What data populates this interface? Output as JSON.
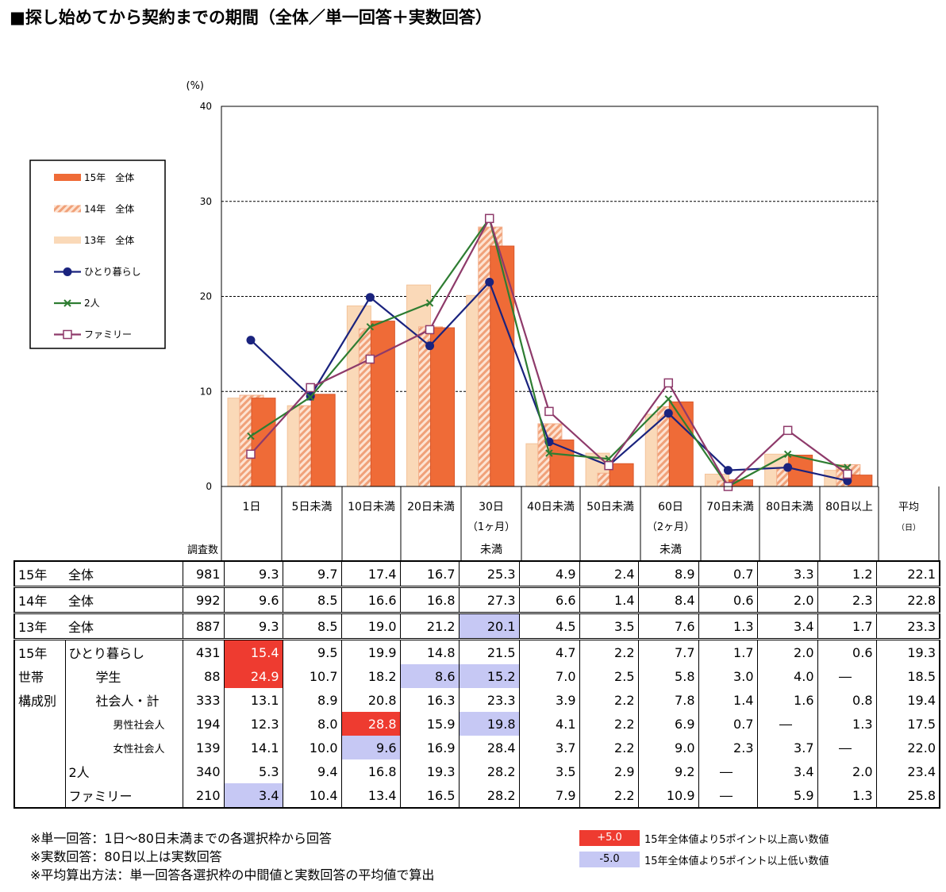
{
  "title": "■探し始めてから契約までの期間（全体／単一回答＋実数回答）",
  "chart_data": {
    "type": "bar",
    "y_unit": "(%)",
    "ylim": [
      0,
      40
    ],
    "yticks": [
      "0",
      "10",
      "20",
      "30",
      "40"
    ],
    "categories": [
      "1日",
      "5日未満",
      "10日未満",
      "20日未満",
      "30日(1ヶ月)未満",
      "40日未満",
      "50日未満",
      "60日(2ヶ月)未満",
      "70日未満",
      "80日未満",
      "80日以上"
    ],
    "bar_series": [
      {
        "name": "13年　全体",
        "values": [
          9.3,
          8.5,
          19.0,
          21.2,
          20.1,
          4.5,
          3.5,
          7.6,
          1.3,
          3.4,
          1.7
        ],
        "color": "#fad9b8"
      },
      {
        "name": "14年　全体",
        "values": [
          9.6,
          8.5,
          16.6,
          16.8,
          27.3,
          6.6,
          1.4,
          8.4,
          0.6,
          2.0,
          2.3
        ],
        "color": "#f0a179"
      },
      {
        "name": "15年　全体",
        "values": [
          9.3,
          9.7,
          17.4,
          16.7,
          25.3,
          4.9,
          2.4,
          8.9,
          0.7,
          3.3,
          1.2
        ],
        "color": "#ef6b37"
      }
    ],
    "line_series": [
      {
        "name": "ひとり暮らし",
        "values": [
          15.4,
          9.5,
          19.9,
          14.8,
          21.5,
          4.7,
          2.2,
          7.7,
          1.7,
          2.0,
          0.6
        ],
        "color": "#1a237e",
        "marker": "dot"
      },
      {
        "name": "2人",
        "values": [
          5.3,
          9.4,
          16.8,
          19.3,
          28.2,
          3.5,
          2.9,
          9.2,
          0.0,
          3.4,
          2.0
        ],
        "color": "#2e7d32",
        "marker": "x"
      },
      {
        "name": "ファミリー",
        "values": [
          3.4,
          10.4,
          13.4,
          16.5,
          28.2,
          7.9,
          2.2,
          10.9,
          0.0,
          5.9,
          1.3
        ],
        "color": "#8e3a6a",
        "marker": "square"
      }
    ],
    "legend_order": [
      "15年　全体",
      "14年　全体",
      "13年　全体",
      "ひとり暮らし",
      "2人",
      "ファミリー"
    ]
  },
  "table": {
    "header_label": "調査数",
    "columns": [
      {
        "l1": "1日",
        "l2": "",
        "l3": ""
      },
      {
        "l1": "5日未満",
        "l2": "",
        "l3": ""
      },
      {
        "l1": "10日未満",
        "l2": "",
        "l3": ""
      },
      {
        "l1": "20日未満",
        "l2": "",
        "l3": ""
      },
      {
        "l1": "30日",
        "l2": "（1ヶ月）",
        "l3": "未満"
      },
      {
        "l1": "40日未満",
        "l2": "",
        "l3": ""
      },
      {
        "l1": "50日未満",
        "l2": "",
        "l3": ""
      },
      {
        "l1": "60日",
        "l2": "（2ヶ月）",
        "l3": "未満"
      },
      {
        "l1": "70日未満",
        "l2": "",
        "l3": ""
      },
      {
        "l1": "80日未満",
        "l2": "",
        "l3": ""
      },
      {
        "l1": "80日以上",
        "l2": "",
        "l3": ""
      },
      {
        "l1": "平均",
        "l2": "（日）",
        "l3": ""
      }
    ],
    "rows": [
      {
        "g1": "15年",
        "g2": "全体",
        "g3": "",
        "indent": 0,
        "n": "981",
        "values": [
          "9.3",
          "9.7",
          "17.4",
          "16.7",
          "25.3",
          "4.9",
          "2.4",
          "8.9",
          "0.7",
          "3.3",
          "1.2",
          "22.1"
        ],
        "hl": [
          null,
          null,
          null,
          null,
          null,
          null,
          null,
          null,
          null,
          null,
          null,
          null
        ],
        "sep": "top"
      },
      {
        "g1": "14年",
        "g2": "全体",
        "g3": "",
        "indent": 0,
        "n": "992",
        "values": [
          "9.6",
          "8.5",
          "16.6",
          "16.8",
          "27.3",
          "6.6",
          "1.4",
          "8.4",
          "0.6",
          "2.0",
          "2.3",
          "22.8"
        ],
        "hl": [
          null,
          null,
          null,
          null,
          null,
          null,
          null,
          null,
          null,
          null,
          null,
          null
        ],
        "sep": "double"
      },
      {
        "g1": "13年",
        "g2": "全体",
        "g3": "",
        "indent": 0,
        "n": "887",
        "values": [
          "9.3",
          "8.5",
          "19.0",
          "21.2",
          "20.1",
          "4.5",
          "3.5",
          "7.6",
          "1.3",
          "3.4",
          "1.7",
          "23.3"
        ],
        "hl": [
          null,
          null,
          null,
          null,
          "lo",
          null,
          null,
          null,
          null,
          null,
          null,
          null
        ],
        "sep": "double"
      },
      {
        "g1": "15年",
        "g2": "ひとり暮らし",
        "g3": "",
        "indent": 0,
        "n": "431",
        "values": [
          "15.4",
          "9.5",
          "19.9",
          "14.8",
          "21.5",
          "4.7",
          "2.2",
          "7.7",
          "1.7",
          "2.0",
          "0.6",
          "19.3"
        ],
        "hl": [
          "hi",
          null,
          null,
          null,
          null,
          null,
          null,
          null,
          null,
          null,
          null,
          null
        ],
        "sep": "double"
      },
      {
        "g1": "世帯",
        "g2": "学生",
        "g3": "",
        "indent": 1,
        "n": "88",
        "values": [
          "24.9",
          "10.7",
          "18.2",
          "8.6",
          "15.2",
          "7.0",
          "2.5",
          "5.8",
          "3.0",
          "4.0",
          "―",
          "18.5"
        ],
        "hl": [
          "hi",
          null,
          null,
          "lo",
          "lo",
          null,
          null,
          null,
          null,
          null,
          null,
          null
        ],
        "sep": ""
      },
      {
        "g1": "構成別",
        "g2": "社会人・計",
        "g3": "",
        "indent": 1,
        "n": "333",
        "values": [
          "13.1",
          "8.9",
          "20.8",
          "16.3",
          "23.3",
          "3.9",
          "2.2",
          "7.8",
          "1.4",
          "1.6",
          "0.8",
          "19.4"
        ],
        "hl": [
          null,
          null,
          null,
          null,
          null,
          null,
          null,
          null,
          null,
          null,
          null,
          null
        ],
        "sep": ""
      },
      {
        "g1": "",
        "g2": "男性社会人",
        "g3": "",
        "indent": 2,
        "n": "194",
        "values": [
          "12.3",
          "8.0",
          "28.8",
          "15.9",
          "19.8",
          "4.1",
          "2.2",
          "6.9",
          "0.7",
          "―",
          "1.3",
          "17.5"
        ],
        "hl": [
          null,
          null,
          "hi",
          null,
          "lo",
          null,
          null,
          null,
          null,
          null,
          null,
          null
        ],
        "sep": ""
      },
      {
        "g1": "",
        "g2": "女性社会人",
        "g3": "",
        "indent": 2,
        "n": "139",
        "values": [
          "14.1",
          "10.0",
          "9.6",
          "16.9",
          "28.4",
          "3.7",
          "2.2",
          "9.0",
          "2.3",
          "3.7",
          "―",
          "22.0"
        ],
        "hl": [
          null,
          null,
          "lo",
          null,
          null,
          null,
          null,
          null,
          null,
          null,
          null,
          null
        ],
        "sep": ""
      },
      {
        "g1": "",
        "g2": "2人",
        "g3": "",
        "indent": 0,
        "n": "340",
        "values": [
          "5.3",
          "9.4",
          "16.8",
          "19.3",
          "28.2",
          "3.5",
          "2.9",
          "9.2",
          "―",
          "3.4",
          "2.0",
          "23.4"
        ],
        "hl": [
          null,
          null,
          null,
          null,
          null,
          null,
          null,
          null,
          null,
          null,
          null,
          null
        ],
        "sep": ""
      },
      {
        "g1": "",
        "g2": "ファミリー",
        "g3": "",
        "indent": 0,
        "n": "210",
        "values": [
          "3.4",
          "10.4",
          "13.4",
          "16.5",
          "28.2",
          "7.9",
          "2.2",
          "10.9",
          "―",
          "5.9",
          "1.3",
          "25.8"
        ],
        "hl": [
          "lo",
          null,
          null,
          null,
          null,
          null,
          null,
          null,
          null,
          null,
          null,
          null
        ],
        "sep": ""
      }
    ]
  },
  "notes": [
    "※単一回答：1日～80日未満までの各選択枠から回答",
    "※実数回答：80日以上は実数回答",
    "※平均算出方法：単一回答各選択枠の中間値と実数回答の平均値で算出"
  ],
  "key": {
    "hi_label": "+5.0",
    "hi_text": "15年全体値より5ポイント以上高い数値",
    "lo_label": "-5.0",
    "lo_text": "15年全体値より5ポイント以上低い数値",
    "hi_color": "#ee3b30",
    "lo_color": "#c6c8f4"
  }
}
